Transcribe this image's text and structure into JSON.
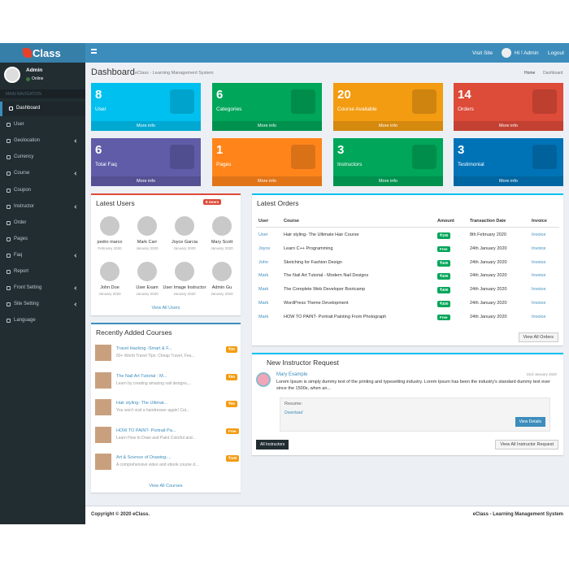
{
  "header": {
    "logo": "Class",
    "links": [
      "Visit Site",
      "Hi ! Admin",
      "Logout"
    ]
  },
  "sidebar": {
    "user": "Admin",
    "status": "Online",
    "section": "MAIN NAVIGATION",
    "menu": [
      "Dashboard",
      "User",
      "Geolocation",
      "Currency",
      "Course",
      "Coupon",
      "Instructor",
      "Order",
      "Pages",
      "Faq",
      "Report",
      "Front Setting",
      "Site Setting",
      "Language"
    ]
  },
  "page": {
    "title": "Dashboard",
    "subtitle": "eClass - Learning Management System",
    "breadcrumb": [
      "Home",
      "Dashboard"
    ]
  },
  "stats": [
    {
      "value": 8,
      "label": "User",
      "link": "More info"
    },
    {
      "value": 6,
      "label": "Categories",
      "link": "More info"
    },
    {
      "value": 20,
      "label": "Course Available",
      "link": "More info"
    },
    {
      "value": 14,
      "label": "Orders",
      "link": "More info"
    },
    {
      "value": 6,
      "label": "Total Faq",
      "link": "More info"
    },
    {
      "value": 1,
      "label": "Pages",
      "link": "More info"
    },
    {
      "value": 3,
      "label": "Instructors",
      "link": "More info"
    },
    {
      "value": 3,
      "label": "Testimonial",
      "link": "More info"
    }
  ],
  "latest_users": {
    "title": "Latest Users",
    "badge": "8 Users",
    "users": [
      {
        "name": "pedro marco",
        "date": "February 2020"
      },
      {
        "name": "Mark Carr",
        "date": "January 2020"
      },
      {
        "name": "Joyce Garcia",
        "date": "January 2020"
      },
      {
        "name": "Mary Scott",
        "date": "January 2020"
      },
      {
        "name": "John Doe",
        "date": "January 2020"
      },
      {
        "name": "User Exam",
        "date": "January 2020"
      },
      {
        "name": "User Image Instructor",
        "date": "January 2020"
      },
      {
        "name": "Admin Gu",
        "date": "January 2020"
      }
    ],
    "link": "View All Users"
  },
  "courses": {
    "title": "Recently Added Courses",
    "items": [
      {
        "title": "Travel Hacking -Smart & F...",
        "desc": "60+ World Travel Tips: Cheap Travel, Fea...",
        "price": "₹30"
      },
      {
        "title": "The Nail Art Tutorial - M...",
        "desc": "Learn by creating amazing nail designs,...",
        "price": "₹60"
      },
      {
        "title": "Hair styling- The Ultimat...",
        "desc": "You won't visit a hairdresser again! Cut...",
        "price": "₹50"
      },
      {
        "title": "HOW TO PAINT- Portrait Pa...",
        "desc": "Learn How to Draw and Paint Colorful and...",
        "price": "Free"
      },
      {
        "title": "Art & Science of Drawing-...",
        "desc": "A comprehensive video and ebook course d...",
        "price": "₹100"
      }
    ],
    "link": "View All Courses"
  },
  "orders": {
    "title": "Latest Orders",
    "columns": [
      "User",
      "Course",
      "Amount",
      "Transaction Date",
      "Invoice"
    ],
    "rows": [
      [
        "User",
        "Hair styling- The Ultimate Hair Course",
        "₹100",
        "8th February 2020",
        "Invoice"
      ],
      [
        "Joyce",
        "Learn C++ Programming",
        "Free",
        "24th January 2020",
        "Invoice"
      ],
      [
        "John",
        "Sketching for Fashion Design",
        "₹400",
        "24th January 2020",
        "Invoice"
      ],
      [
        "Mark",
        "The Nail Art Tutorial - Modern Nail Designs",
        "₹400",
        "24th January 2020",
        "Invoice"
      ],
      [
        "Mark",
        "The Complete Web Developer Bootcamp",
        "₹400",
        "24th January 2020",
        "Invoice"
      ],
      [
        "Mark",
        "WordPress Theme Development",
        "₹400",
        "24th January 2020",
        "Invoice"
      ],
      [
        "Mark",
        "HOW TO PAINT- Portrait Painting From Photograph",
        "Free",
        "24th January 2020",
        "Invoice"
      ]
    ],
    "link": "View All Orders"
  },
  "instructor_request": {
    "title": "New Instructor Request",
    "name": "Mary Example",
    "date": "23rd January 2020",
    "text": "Lorem Ipsum is simply dummy text of the printing and typesetting industry. Lorem Ipsum has been the industry's standard dummy text ever since the 1500s, when an...",
    "resume": "Resume:",
    "download": "Download",
    "details": "View Details",
    "all": "All Instructors",
    "view_all": "View All Instructor Request"
  },
  "footer": {
    "left": "Copyright © 2020 eClass.",
    "right": "eClass - Learning Management System"
  }
}
